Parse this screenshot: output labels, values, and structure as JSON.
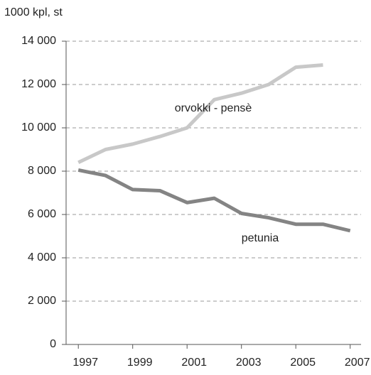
{
  "chart_data": {
    "type": "line",
    "ylabel": "1000 kpl, st",
    "x": [
      1997,
      1998,
      1999,
      2000,
      2001,
      2002,
      2003,
      2004,
      2005,
      2006,
      2007
    ],
    "series": [
      {
        "name": "orvokki - pensè",
        "color": "#c8c8c8",
        "values": [
          8400,
          9000,
          9250,
          9600,
          10000,
          11300,
          11600,
          12000,
          12800,
          12900,
          null
        ]
      },
      {
        "name": "petunia",
        "color": "#848484",
        "values": [
          8050,
          7800,
          7150,
          7100,
          6550,
          6750,
          6050,
          5850,
          5550,
          5550,
          5250
        ]
      }
    ],
    "xlim": [
      1996.55,
      2007.4
    ],
    "xticks": [
      1997,
      1999,
      2001,
      2003,
      2005,
      2007
    ],
    "ylim": [
      0,
      14000
    ],
    "yticks": [
      0,
      {
        "value": 2000,
        "label": "2 000"
      },
      {
        "value": 4000,
        "label": "4 000"
      },
      {
        "value": 6000,
        "label": "6 000"
      },
      {
        "value": 8000,
        "label": "8 000"
      },
      {
        "value": 10000,
        "label": "10 000"
      },
      {
        "value": 12000,
        "label": "12 000"
      },
      {
        "value": 14000,
        "label": "14 000"
      }
    ],
    "grid": true
  }
}
